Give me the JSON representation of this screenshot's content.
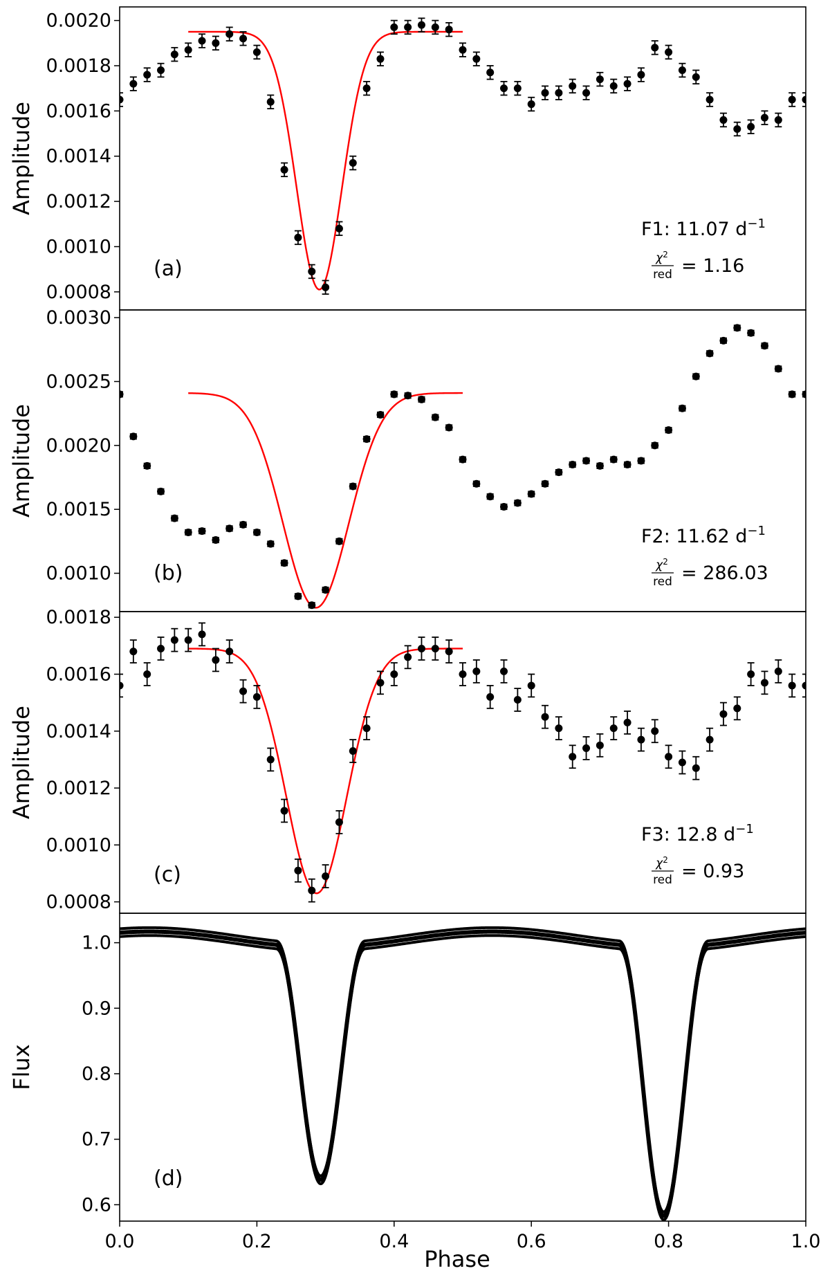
{
  "figure": {
    "xlabel": "Phase",
    "x_ticks": [
      "0.0",
      "0.2",
      "0.4",
      "0.6",
      "0.8",
      "1.0"
    ]
  },
  "chart_data": [
    {
      "id": "a",
      "type": "scatter",
      "panel_label": "(a)",
      "ylabel": "Amplitude",
      "xlim": [
        0,
        1
      ],
      "ylim": [
        0.00072,
        0.00206
      ],
      "y_ticks": [
        0.0008,
        0.001,
        0.0012,
        0.0014,
        0.0016,
        0.0018,
        0.002
      ],
      "y_tick_labels": [
        "0.0008",
        "0.0010",
        "0.0012",
        "0.0014",
        "0.0016",
        "0.0018",
        "0.0020"
      ],
      "freq_label": "F1: 11.07 d",
      "freq_sup": "−1",
      "chi_value": "= 1.16",
      "chi_symbol": "χ",
      "chi_sup": "2",
      "chi_sub": "red",
      "x": [
        0.0,
        0.02,
        0.04,
        0.06,
        0.08,
        0.1,
        0.12,
        0.14,
        0.16,
        0.18,
        0.2,
        0.22,
        0.24,
        0.26,
        0.28,
        0.3,
        0.32,
        0.34,
        0.36,
        0.38,
        0.4,
        0.42,
        0.44,
        0.46,
        0.48,
        0.5,
        0.52,
        0.54,
        0.56,
        0.58,
        0.6,
        0.62,
        0.64,
        0.66,
        0.68,
        0.7,
        0.72,
        0.74,
        0.76,
        0.78,
        0.8,
        0.82,
        0.84,
        0.86,
        0.88,
        0.9,
        0.92,
        0.94,
        0.96,
        0.98,
        1.0
      ],
      "y": [
        0.00165,
        0.00172,
        0.00176,
        0.00178,
        0.00185,
        0.00187,
        0.00191,
        0.0019,
        0.00194,
        0.00192,
        0.00186,
        0.00164,
        0.00134,
        0.00104,
        0.00089,
        0.00082,
        0.00108,
        0.00137,
        0.0017,
        0.00183,
        0.00197,
        0.00197,
        0.00198,
        0.00197,
        0.00196,
        0.00187,
        0.00183,
        0.00177,
        0.0017,
        0.0017,
        0.00163,
        0.00168,
        0.00168,
        0.00171,
        0.00168,
        0.00174,
        0.00171,
        0.00172,
        0.00176,
        0.00188,
        0.00186,
        0.00178,
        0.00175,
        0.00165,
        0.00156,
        0.00152,
        0.00153,
        0.00157,
        0.00156,
        0.00165,
        0.00165
      ],
      "err": 3e-05,
      "fit": {
        "x_range": [
          0.1,
          0.5
        ],
        "base": 0.00195,
        "depth": 0.00114,
        "center": 0.291,
        "sigma": 0.033,
        "color": "#ff0000"
      }
    },
    {
      "id": "b",
      "type": "scatter",
      "panel_label": "(b)",
      "ylabel": "Amplitude",
      "xlim": [
        0,
        1
      ],
      "ylim": [
        0.0007,
        0.00306
      ],
      "y_ticks": [
        0.001,
        0.0015,
        0.002,
        0.0025,
        0.003
      ],
      "y_tick_labels": [
        "0.0010",
        "0.0015",
        "0.0020",
        "0.0025",
        "0.0030"
      ],
      "freq_label": "F2: 11.62 d",
      "freq_sup": "−1",
      "chi_value": "= 286.03",
      "chi_symbol": "χ",
      "chi_sup": "2",
      "chi_sub": "red",
      "x": [
        0.0,
        0.02,
        0.04,
        0.06,
        0.08,
        0.1,
        0.12,
        0.14,
        0.16,
        0.18,
        0.2,
        0.22,
        0.24,
        0.26,
        0.28,
        0.3,
        0.32,
        0.34,
        0.36,
        0.38,
        0.4,
        0.42,
        0.44,
        0.46,
        0.48,
        0.5,
        0.52,
        0.54,
        0.56,
        0.58,
        0.6,
        0.62,
        0.64,
        0.66,
        0.68,
        0.7,
        0.72,
        0.74,
        0.76,
        0.78,
        0.8,
        0.82,
        0.84,
        0.86,
        0.88,
        0.9,
        0.92,
        0.94,
        0.96,
        0.98,
        1.0
      ],
      "y": [
        0.0024,
        0.00207,
        0.00184,
        0.00164,
        0.00143,
        0.00132,
        0.00133,
        0.00126,
        0.00135,
        0.00138,
        0.00132,
        0.00123,
        0.00108,
        0.00082,
        0.00075,
        0.00087,
        0.00125,
        0.00168,
        0.00205,
        0.00224,
        0.0024,
        0.00239,
        0.00236,
        0.00222,
        0.00214,
        0.00189,
        0.0017,
        0.0016,
        0.00152,
        0.00155,
        0.00162,
        0.0017,
        0.00179,
        0.00185,
        0.00188,
        0.00184,
        0.00189,
        0.00185,
        0.00188,
        0.002,
        0.00212,
        0.00229,
        0.00254,
        0.00272,
        0.00282,
        0.00292,
        0.00288,
        0.00278,
        0.0026,
        0.0024,
        0.0024
      ],
      "err": 2e-05,
      "fit": {
        "x_range": [
          0.1,
          0.5
        ],
        "base": 0.00241,
        "depth": 0.00168,
        "center": 0.286,
        "sigma": 0.048,
        "color": "#ff0000"
      }
    },
    {
      "id": "c",
      "type": "scatter",
      "panel_label": "(c)",
      "ylabel": "Amplitude",
      "xlim": [
        0,
        1
      ],
      "ylim": [
        0.00076,
        0.00182
      ],
      "y_ticks": [
        0.0008,
        0.001,
        0.0012,
        0.0014,
        0.0016,
        0.0018
      ],
      "y_tick_labels": [
        "0.0008",
        "0.0010",
        "0.0012",
        "0.0014",
        "0.0016",
        "0.0018"
      ],
      "freq_label": "F3: 12.8 d",
      "freq_sup": "−1",
      "chi_value": "= 0.93",
      "chi_symbol": "χ",
      "chi_sup": "2",
      "chi_sub": "red",
      "x": [
        0.0,
        0.02,
        0.04,
        0.06,
        0.08,
        0.1,
        0.12,
        0.14,
        0.16,
        0.18,
        0.2,
        0.22,
        0.24,
        0.26,
        0.28,
        0.3,
        0.32,
        0.34,
        0.36,
        0.38,
        0.4,
        0.42,
        0.44,
        0.46,
        0.48,
        0.5,
        0.52,
        0.54,
        0.56,
        0.58,
        0.6,
        0.62,
        0.64,
        0.66,
        0.68,
        0.7,
        0.72,
        0.74,
        0.76,
        0.78,
        0.8,
        0.82,
        0.84,
        0.86,
        0.88,
        0.9,
        0.92,
        0.94,
        0.96,
        0.98,
        1.0
      ],
      "y": [
        0.00156,
        0.00168,
        0.0016,
        0.00169,
        0.00172,
        0.00172,
        0.00174,
        0.00165,
        0.00168,
        0.00154,
        0.00152,
        0.0013,
        0.00112,
        0.00091,
        0.00084,
        0.00089,
        0.00108,
        0.00133,
        0.00141,
        0.00157,
        0.0016,
        0.00166,
        0.00169,
        0.00169,
        0.00168,
        0.0016,
        0.00161,
        0.00152,
        0.00161,
        0.00151,
        0.00156,
        0.00145,
        0.00141,
        0.00131,
        0.00134,
        0.00135,
        0.00141,
        0.00143,
        0.00137,
        0.0014,
        0.00131,
        0.00129,
        0.00127,
        0.00137,
        0.00146,
        0.00148,
        0.0016,
        0.00157,
        0.00161,
        0.00156,
        0.00156
      ],
      "err": 4e-05,
      "fit": {
        "x_range": [
          0.1,
          0.5
        ],
        "base": 0.00169,
        "depth": 0.00086,
        "center": 0.287,
        "sigma": 0.044,
        "color": "#ff0000"
      }
    },
    {
      "id": "d",
      "type": "line",
      "panel_label": "(d)",
      "ylabel": "Flux",
      "xlim": [
        0,
        1
      ],
      "ylim": [
        0.575,
        1.045
      ],
      "y_ticks": [
        0.6,
        0.7,
        0.8,
        0.9,
        1.0
      ],
      "y_tick_labels": [
        "0.6",
        "0.7",
        "0.8",
        "0.9",
        "1.0"
      ],
      "baseline": {
        "c0": 1.005,
        "amp": 0.012
      },
      "eclipses": [
        {
          "center": 0.293,
          "depth": 0.355,
          "width": 0.065
        },
        {
          "center": 0.793,
          "depth": 0.41,
          "width": 0.065
        }
      ],
      "scatter": 0.006
    }
  ]
}
